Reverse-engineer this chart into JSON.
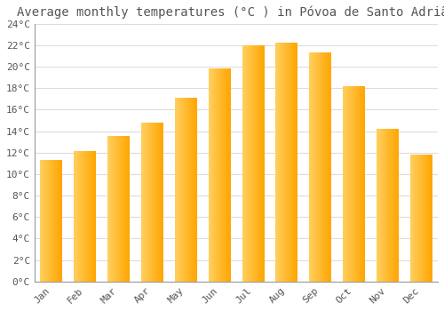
{
  "title": "Average monthly temperatures (°C ) in Póvoa de Santo Adrião",
  "months": [
    "Jan",
    "Feb",
    "Mar",
    "Apr",
    "May",
    "Jun",
    "Jul",
    "Aug",
    "Sep",
    "Oct",
    "Nov",
    "Dec"
  ],
  "values": [
    11.3,
    12.1,
    13.5,
    14.8,
    17.1,
    19.8,
    22.0,
    22.2,
    21.3,
    18.2,
    14.2,
    11.8
  ],
  "bar_color_left": "#FFD060",
  "bar_color_right": "#FFA500",
  "background_color": "#FFFFFF",
  "grid_color": "#DDDDDD",
  "text_color": "#555555",
  "ylim": [
    0,
    24
  ],
  "ytick_step": 2,
  "title_fontsize": 10,
  "tick_fontsize": 8
}
